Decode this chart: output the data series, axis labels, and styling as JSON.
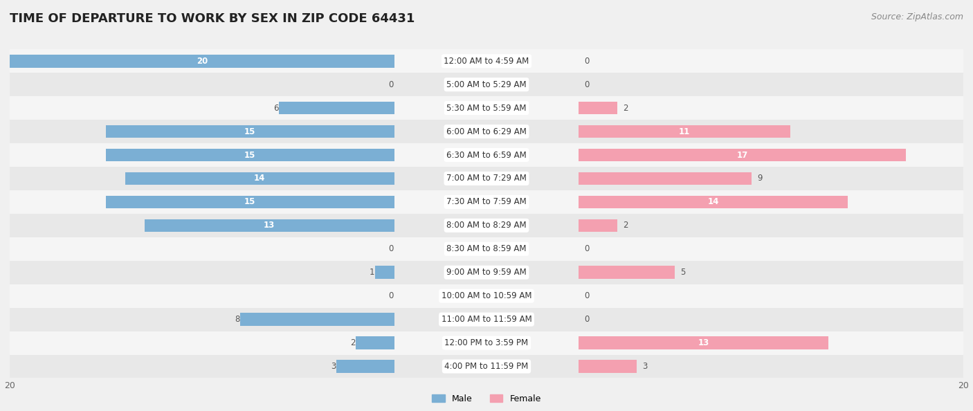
{
  "title": "TIME OF DEPARTURE TO WORK BY SEX IN ZIP CODE 64431",
  "source": "Source: ZipAtlas.com",
  "categories": [
    "12:00 AM to 4:59 AM",
    "5:00 AM to 5:29 AM",
    "5:30 AM to 5:59 AM",
    "6:00 AM to 6:29 AM",
    "6:30 AM to 6:59 AM",
    "7:00 AM to 7:29 AM",
    "7:30 AM to 7:59 AM",
    "8:00 AM to 8:29 AM",
    "8:30 AM to 8:59 AM",
    "9:00 AM to 9:59 AM",
    "10:00 AM to 10:59 AM",
    "11:00 AM to 11:59 AM",
    "12:00 PM to 3:59 PM",
    "4:00 PM to 11:59 PM"
  ],
  "male_values": [
    20,
    0,
    6,
    15,
    15,
    14,
    15,
    13,
    0,
    1,
    0,
    8,
    2,
    3
  ],
  "female_values": [
    0,
    0,
    2,
    11,
    17,
    9,
    14,
    2,
    0,
    5,
    0,
    0,
    13,
    3
  ],
  "male_color": "#7bafd4",
  "female_color": "#f4a0b0",
  "male_label": "Male",
  "female_label": "Female",
  "axis_max": 20,
  "background_color": "#f0f0f0",
  "row_bg_colors": [
    "#f5f5f5",
    "#e8e8e8"
  ],
  "title_fontsize": 13,
  "source_fontsize": 9,
  "label_fontsize": 9,
  "bar_label_fontsize": 8.5,
  "cat_label_fontsize": 8.5,
  "tick_fontsize": 9,
  "bar_height": 0.55
}
